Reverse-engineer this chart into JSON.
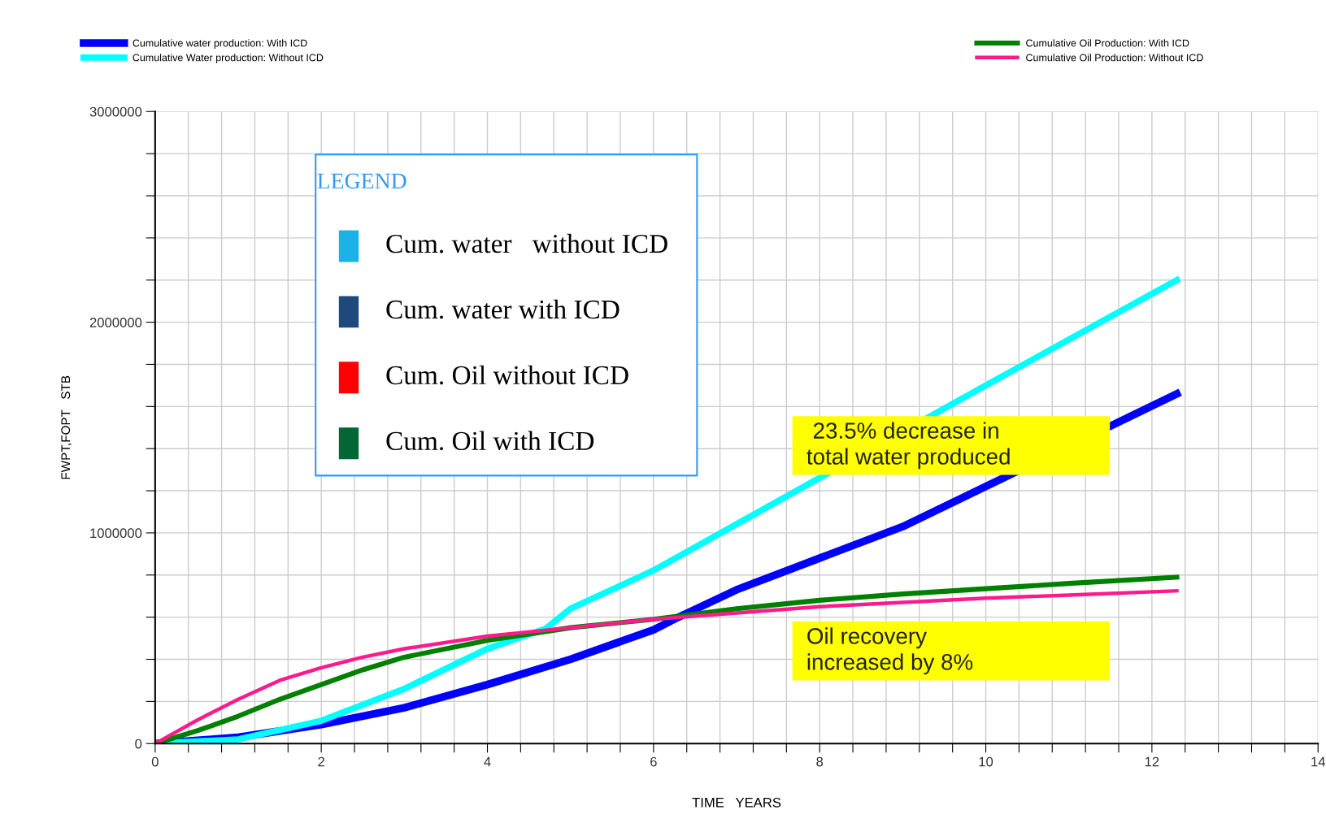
{
  "chart_data": {
    "type": "line",
    "xlabel": "TIME   YEARS",
    "ylabel": "FWPT,FOPT   STB",
    "xlim": [
      0,
      14
    ],
    "xticks": [
      0,
      {
        "value": 0.4,
        "label": null
      },
      {
        "value": 0.8,
        "label": null
      },
      {
        "value": 1.2,
        "label": null
      },
      {
        "value": 1.6,
        "label": null
      },
      2,
      {
        "value": 2.4,
        "label": null
      },
      {
        "value": 2.8,
        "label": null
      },
      {
        "value": 3.2,
        "label": null
      },
      {
        "value": 3.6,
        "label": null
      },
      4,
      {
        "value": 4.4,
        "label": null
      },
      {
        "value": 4.8,
        "label": null
      },
      {
        "value": 5.2,
        "label": null
      },
      {
        "value": 5.6,
        "label": null
      },
      6,
      {
        "value": 6.4,
        "label": null
      },
      {
        "value": 6.8,
        "label": null
      },
      {
        "value": 7.2,
        "label": null
      },
      {
        "value": 7.6,
        "label": null
      },
      8,
      {
        "value": 8.4,
        "label": null
      },
      {
        "value": 8.8,
        "label": null
      },
      {
        "value": 9.2,
        "label": null
      },
      {
        "value": 9.6,
        "label": null
      },
      10,
      {
        "value": 10.4,
        "label": null
      },
      {
        "value": 10.8,
        "label": null
      },
      {
        "value": 11.2,
        "label": null
      },
      {
        "value": 11.6,
        "label": null
      },
      12,
      {
        "value": 12.4,
        "label": null
      },
      {
        "value": 12.8,
        "label": null
      },
      {
        "value": 13.2,
        "label": null
      },
      {
        "value": 13.6,
        "label": null
      },
      14
    ],
    "ylim": [
      0,
      3000000
    ],
    "yticks": [
      0,
      {
        "value": 200000,
        "label": null
      },
      {
        "value": 400000,
        "label": null
      },
      {
        "value": 600000,
        "label": null
      },
      {
        "value": 800000,
        "label": null
      },
      1000000,
      {
        "value": 1200000,
        "label": null
      },
      {
        "value": 1400000,
        "label": null
      },
      {
        "value": 1600000,
        "label": null
      },
      {
        "value": 1800000,
        "label": null
      },
      2000000,
      {
        "value": 2200000,
        "label": null
      },
      {
        "value": 2400000,
        "label": null
      },
      {
        "value": 2600000,
        "label": null
      },
      {
        "value": 2800000,
        "label": null
      },
      3000000
    ],
    "grid": true,
    "legend": "top",
    "marker": "none",
    "line_style": "solid",
    "series": [
      {
        "name": "Cumulative water production: With ICD",
        "color": "#0000ff",
        "x": [
          0,
          1,
          2,
          3,
          4,
          5,
          6,
          6.3,
          7,
          8,
          9,
          10,
          12.3
        ],
        "values": [
          0,
          30000,
          90000,
          170000,
          280000,
          400000,
          540000,
          600000,
          730000,
          880000,
          1030000,
          1220000,
          1660000
        ]
      },
      {
        "name": "Cumulative Water production: Without ICD",
        "color": "#00ffff",
        "x": [
          0,
          1,
          2,
          3,
          4,
          4.7,
          5,
          6,
          10,
          12.3
        ],
        "values": [
          0,
          20000,
          108000,
          260000,
          450000,
          545000,
          640000,
          822000,
          1700000,
          2200000
        ]
      },
      {
        "name": "Cumulative Oil Production: With ICD",
        "color": "#008000",
        "x": [
          0,
          0.5,
          1,
          1.5,
          2,
          2.5,
          3,
          4,
          5,
          6,
          7,
          8,
          9,
          10,
          11,
          12.3
        ],
        "values": [
          0,
          60000,
          130000,
          210000,
          280000,
          350000,
          410000,
          490000,
          550000,
          590000,
          640000,
          680000,
          710000,
          735000,
          760000,
          790000
        ]
      },
      {
        "name": "Cumulative Oil Production: Without ICD",
        "color": "#ff1a8c",
        "x": [
          0,
          0.5,
          1,
          1.5,
          2,
          2.5,
          3,
          4,
          5,
          6,
          7,
          8,
          9,
          10,
          11,
          12.3
        ],
        "values": [
          0,
          110000,
          210000,
          300000,
          360000,
          410000,
          450000,
          510000,
          550000,
          590000,
          620000,
          650000,
          670000,
          690000,
          705000,
          725000
        ]
      }
    ],
    "annotations": [
      " 23.5% decrease in\ntotal water produced",
      "Oil recovery\nincreased by 8%",
      "LEGEND",
      "Cum. water   without ICD",
      "Cum. water with ICD",
      "Cum. Oil without ICD",
      "Cum. Oil with ICD"
    ]
  }
}
